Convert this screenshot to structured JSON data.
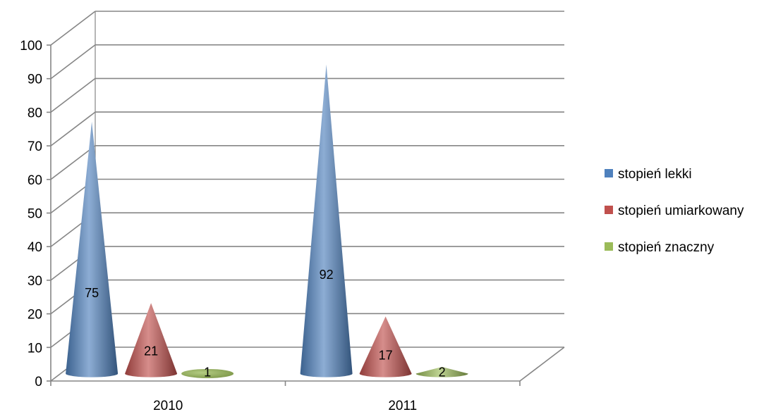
{
  "chart_data": {
    "type": "bar",
    "shape": "cone-3d",
    "categories": [
      "2010",
      "2011"
    ],
    "series": [
      {
        "name": "stopień lekki",
        "values": [
          75,
          92
        ],
        "color": "#4f81bd"
      },
      {
        "name": "stopień umiarkowany",
        "values": [
          21,
          17
        ],
        "color": "#c0504d"
      },
      {
        "name": "stopień znaczny",
        "values": [
          1,
          2
        ],
        "color": "#9bbb59"
      }
    ],
    "ylim": [
      0,
      100
    ],
    "yticks": [
      "0",
      "10",
      "20",
      "30",
      "40",
      "50",
      "60",
      "70",
      "80",
      "90",
      "100"
    ],
    "grid": true,
    "legend": "right",
    "data_labels": true,
    "title": "",
    "xlabel": "",
    "ylabel": ""
  }
}
